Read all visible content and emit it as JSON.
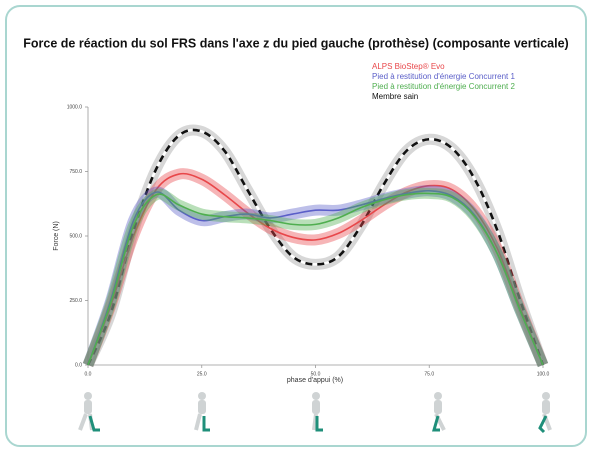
{
  "chart_data": {
    "type": "line",
    "title": "Force de réaction du sol FRS dans l'axe z du pied gauche (prothèse) (composante verticale)",
    "x_label": "phase d'appui (%)",
    "y_label": "Force (N)",
    "x": [
      0,
      5,
      10,
      15,
      20,
      25,
      30,
      35,
      40,
      45,
      50,
      55,
      60,
      65,
      70,
      75,
      80,
      85,
      90,
      95,
      100
    ],
    "series": [
      {
        "name": "ALPS BioStep® Evo",
        "color": "#e8474a",
        "values": [
          0,
          230,
          500,
          680,
          740,
          720,
          660,
          590,
          530,
          495,
          485,
          510,
          560,
          620,
          670,
          695,
          680,
          600,
          450,
          220,
          0
        ]
      },
      {
        "name": "Pied à restitution d'énergie Concurrent 1",
        "color": "#5a5ec8",
        "values": [
          0,
          250,
          560,
          670,
          600,
          560,
          575,
          585,
          570,
          585,
          600,
          600,
          620,
          645,
          665,
          675,
          655,
          580,
          430,
          210,
          0
        ]
      },
      {
        "name": "Pied à restitution d'énergie Concurrent 2",
        "color": "#4fae4f",
        "values": [
          0,
          240,
          540,
          660,
          620,
          585,
          575,
          570,
          560,
          545,
          545,
          570,
          610,
          640,
          660,
          665,
          650,
          575,
          430,
          210,
          0
        ]
      },
      {
        "name": "Membre sain",
        "color": "#111111",
        "dashed": true,
        "values": [
          0,
          200,
          520,
          760,
          890,
          905,
          830,
          680,
          530,
          420,
          390,
          420,
          540,
          700,
          830,
          875,
          840,
          720,
          520,
          250,
          0
        ]
      }
    ],
    "xlim": [
      0,
      100
    ],
    "xticks": [
      {
        "value": 0,
        "label": "0.0"
      },
      {
        "value": 25,
        "label": "25.0"
      },
      {
        "value": 50,
        "label": "50.0"
      },
      {
        "value": 75,
        "label": "75.0"
      },
      {
        "value": 100,
        "label": "100.0"
      }
    ],
    "ylim": [
      0,
      1000
    ],
    "yticks": [
      {
        "value": 0,
        "label": "0.0"
      },
      {
        "value": 250,
        "label": "250.0"
      },
      {
        "value": 500,
        "label": "500.0"
      },
      {
        "value": 750,
        "label": "750.0"
      },
      {
        "value": 1000,
        "label": "1000.0"
      }
    ],
    "legend": "upper-right"
  }
}
